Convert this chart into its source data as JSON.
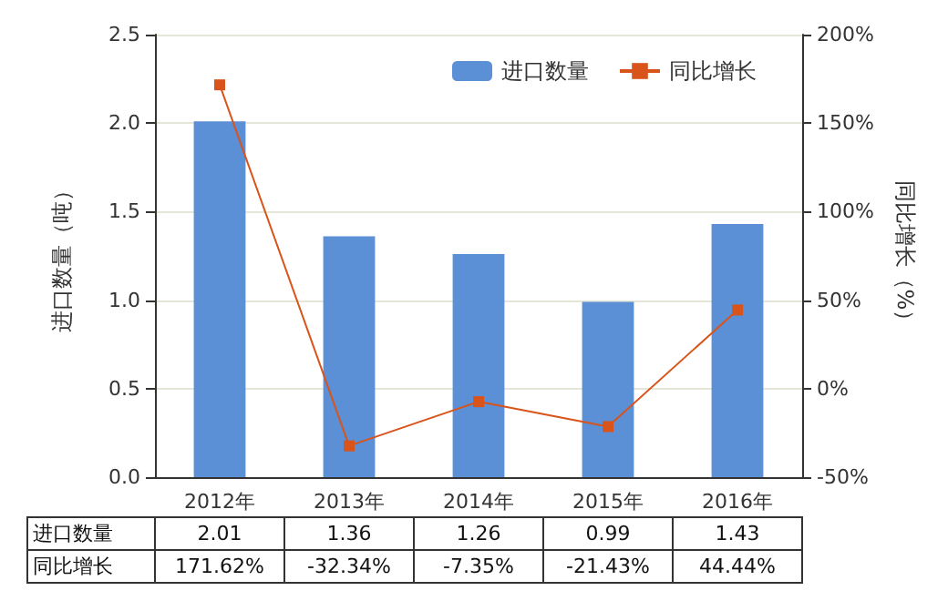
{
  "chart_data": {
    "type": "bar",
    "categories": [
      "2012年",
      "2013年",
      "2014年",
      "2015年",
      "2016年"
    ],
    "ylabel": "进口数量（吨）",
    "y2label": "同比增长（%）",
    "series": [
      {
        "name": "进口数量",
        "color": "#5b8fd6",
        "values": [
          2.01,
          1.36,
          1.26,
          0.99,
          1.43
        ],
        "value_labels": [
          "2.01",
          "1.36",
          "1.26",
          "0.99",
          "1.43"
        ]
      },
      {
        "name": "同比增长",
        "type": "line",
        "axis": "y2",
        "color": "#d9541a",
        "marker": "square",
        "values": [
          171.62,
          -32.34,
          -7.35,
          -21.43,
          44.44
        ],
        "value_labels": [
          "171.62%",
          "-32.34%",
          "-7.35%",
          "-21.43%",
          "44.44%"
        ]
      }
    ],
    "ylim": [
      0,
      2.5
    ],
    "yticks": [
      {
        "value": 0,
        "label": "0.0"
      },
      {
        "value": 0.5,
        "label": "0.5"
      },
      {
        "value": 1,
        "label": "1.0"
      },
      {
        "value": 1.5,
        "label": "1.5"
      },
      {
        "value": 2,
        "label": "2.0"
      },
      {
        "value": 2.5,
        "label": "2.5"
      }
    ],
    "y2lim": [
      -50,
      200
    ],
    "y2ticks": [
      {
        "value": -50,
        "label": "-50%"
      },
      {
        "value": 0,
        "label": "0%"
      },
      {
        "value": 50,
        "label": "50%"
      },
      {
        "value": 100,
        "label": "100%"
      },
      {
        "value": 150,
        "label": "150%"
      },
      {
        "value": 200,
        "label": "200%"
      }
    ],
    "grid": "y",
    "legend": "top right"
  }
}
